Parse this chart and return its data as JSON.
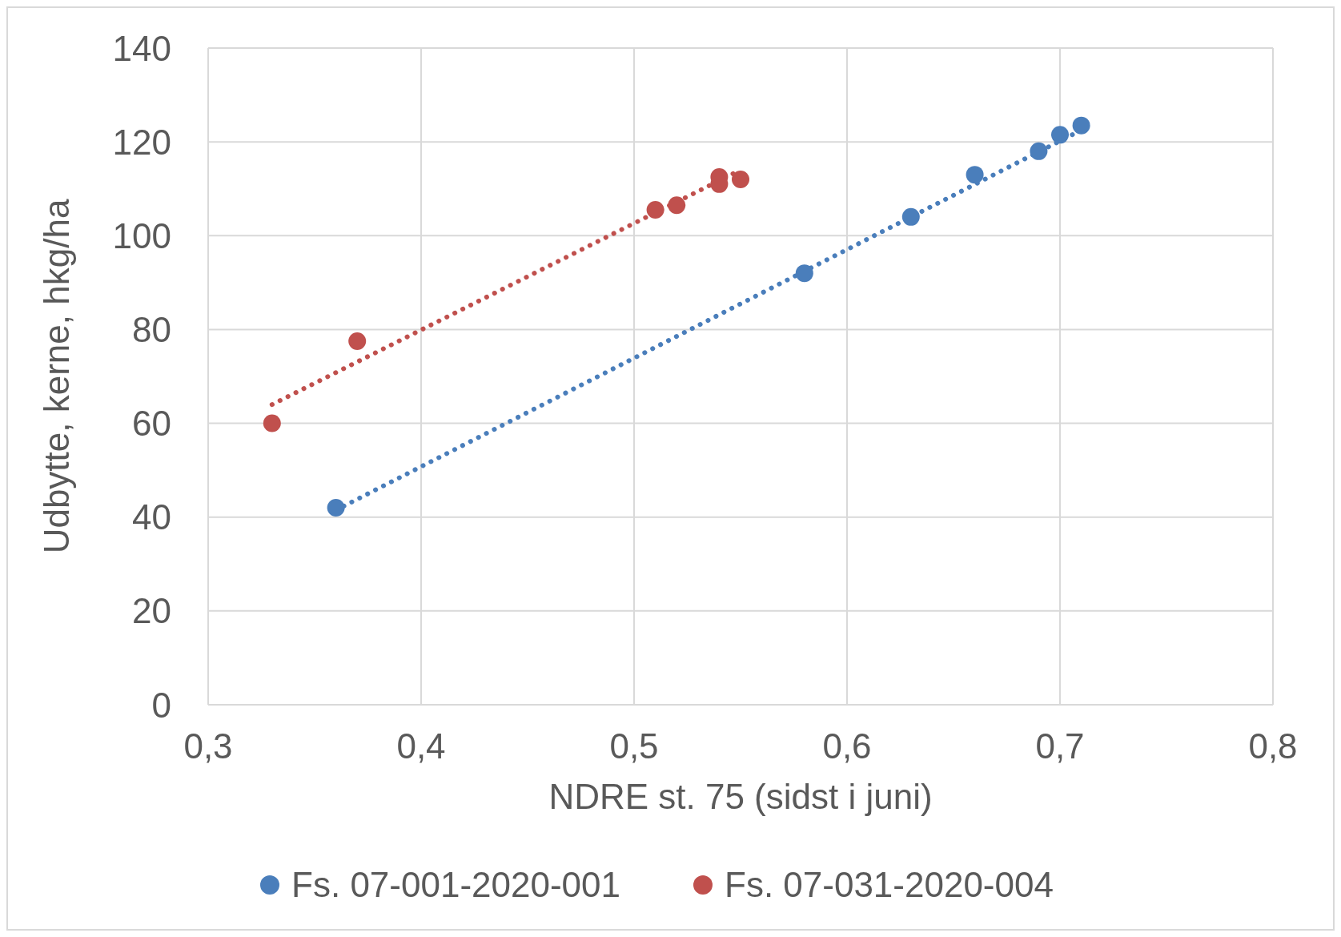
{
  "chart_data": {
    "type": "scatter",
    "xlabel": "NDRE st. 75 (sidst i juni)",
    "ylabel": "Udbytte, kerne, hkg/ha",
    "xlim": [
      0.3,
      0.8
    ],
    "xticks": [
      {
        "value": 0.3,
        "label": "0,3"
      },
      {
        "value": 0.4,
        "label": "0,4"
      },
      {
        "value": 0.5,
        "label": "0,5"
      },
      {
        "value": 0.6,
        "label": "0,6"
      },
      {
        "value": 0.7,
        "label": "0,7"
      },
      {
        "value": 0.8,
        "label": "0,8"
      }
    ],
    "ylim": [
      0,
      140
    ],
    "yticks": [
      0,
      20,
      40,
      60,
      80,
      100,
      120,
      140
    ],
    "grid": true,
    "legend": "bottom",
    "marker": "circle",
    "series": [
      {
        "name": "Fs. 07-001-2020-001",
        "color": "#4a7ebb",
        "x": [
          0.36,
          0.58,
          0.63,
          0.66,
          0.69,
          0.7,
          0.71
        ],
        "values": [
          42,
          92,
          104,
          113,
          118,
          121.5,
          123.5
        ]
      },
      {
        "name": "Fs. 07-031-2020-004",
        "color": "#c0504d",
        "x": [
          0.33,
          0.37,
          0.51,
          0.52,
          0.54,
          0.54,
          0.55
        ],
        "values": [
          60,
          77.5,
          105.5,
          106.5,
          112.5,
          111,
          112
        ]
      },
      {
        "type": "line",
        "color": "#4a7ebb",
        "line_style": "dotted",
        "marker": "none",
        "x": [
          0.36,
          0.71
        ],
        "values": [
          41.5,
          122.5
        ]
      },
      {
        "type": "line",
        "color": "#c0504d",
        "line_style": "dotted",
        "marker": "none",
        "x": [
          0.33,
          0.55
        ],
        "values": [
          64,
          114
        ]
      }
    ]
  }
}
